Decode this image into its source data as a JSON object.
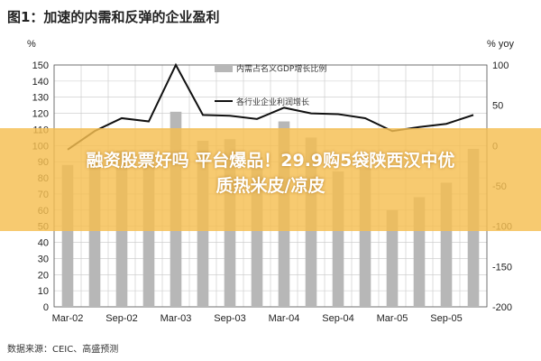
{
  "chart_data": {
    "type": "bar",
    "title": "图1：加速的内需和反弹的企业盈利",
    "left_unit": "%",
    "right_unit": "% yoy",
    "x_tick_labels": [
      "Mar-02",
      "Sep-02",
      "Mar-03",
      "Sep-03",
      "Mar-04",
      "Sep-04",
      "Mar-05",
      "Sep-05"
    ],
    "left_axis": {
      "min": 0,
      "max": 150,
      "ticks": [
        0,
        10,
        20,
        30,
        40,
        50,
        60,
        70,
        80,
        90,
        100,
        110,
        120,
        130,
        140,
        150
      ]
    },
    "right_axis": {
      "min": -200,
      "max": 100,
      "ticks": [
        -200,
        -150,
        -100,
        -50,
        0,
        50,
        100
      ]
    },
    "categories": [
      "Mar-02",
      "Jun-02",
      "Sep-02",
      "Dec-02",
      "Mar-03",
      "Jun-03",
      "Sep-03",
      "Dec-03",
      "Mar-04",
      "Jun-04",
      "Sep-04",
      "Dec-04",
      "Mar-05",
      "Jun-05",
      "Sep-05",
      "Dec-05"
    ],
    "series": [
      {
        "name": "内需占名义GDP增长比例",
        "axis": "left",
        "kind": "bar",
        "values": [
          88,
          96,
          97,
          97,
          121,
          103,
          104,
          93,
          115,
          105,
          84,
          86,
          60,
          68,
          77,
          98
        ]
      },
      {
        "name": "各行业企业利润增长",
        "axis": "right",
        "kind": "line",
        "values": [
          -5,
          18,
          34,
          30,
          100,
          38,
          37,
          33,
          47,
          40,
          39,
          34,
          18,
          23,
          27,
          38
        ]
      }
    ],
    "source": "数据来源：CEIC、高盛预测",
    "colors": {
      "bar": "#b7b7b7",
      "line": "#111111",
      "grid": "#c8c8c8"
    }
  },
  "overlay": {
    "line1": "融资股票好吗 平台爆品！29.9购5袋陕西汉中优",
    "line2": "质热米皮/凉皮",
    "color": "#f5be50"
  }
}
